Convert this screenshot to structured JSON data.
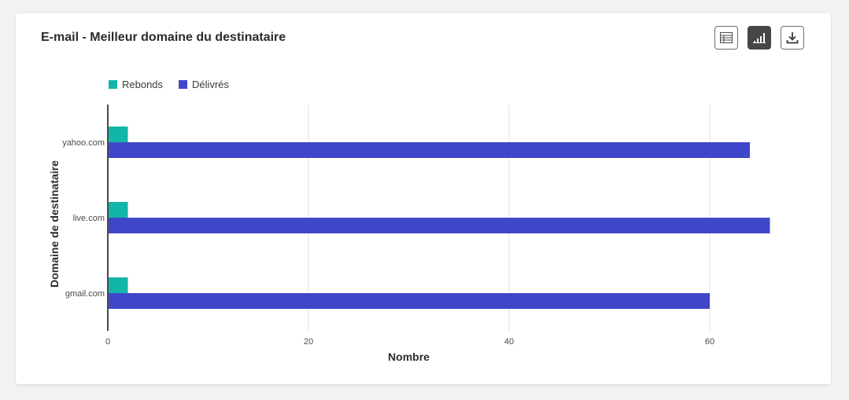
{
  "card": {
    "title": "E-mail - Meilleur domaine du destinataire"
  },
  "toolbar": {
    "buttons": [
      {
        "name": "table-view-button",
        "icon": "table-icon",
        "active": false
      },
      {
        "name": "chart-view-button",
        "icon": "bar-chart-icon",
        "active": true
      },
      {
        "name": "download-button",
        "icon": "download-icon",
        "active": false
      }
    ]
  },
  "chart_data": {
    "type": "bar",
    "orientation": "horizontal",
    "categories": [
      "yahoo.com",
      "live.com",
      "gmail.com"
    ],
    "series": [
      {
        "name": "Rebonds",
        "color": "#12b5a8",
        "values": [
          2,
          2,
          2
        ]
      },
      {
        "name": "Délivrés",
        "color": "#4046ca",
        "values": [
          64,
          66,
          60
        ]
      }
    ],
    "xlabel": "Nombre",
    "ylabel": "Domaine de destinataire",
    "xticks": [
      0,
      20,
      40,
      60
    ],
    "grid": true,
    "legend_position": "top-left"
  }
}
